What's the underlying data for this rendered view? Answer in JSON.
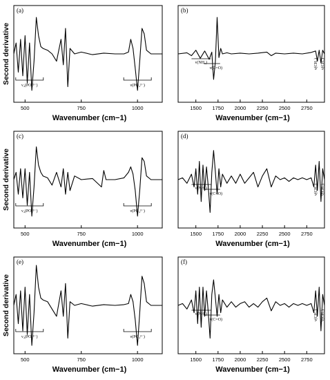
{
  "chart_data": [
    {
      "type": "line",
      "panel_label": "(a)",
      "xlabel": "Wavenumber",
      "xunit": "(cm−1)",
      "ylabel": "Second derivative",
      "xlim": [
        450,
        1110
      ],
      "xticks": [
        500,
        750,
        1000
      ],
      "x": [
        450,
        460,
        470,
        480,
        490,
        500,
        510,
        520,
        530,
        540,
        550,
        560,
        570,
        580,
        600,
        620,
        640,
        660,
        670,
        680,
        690,
        700,
        720,
        750,
        800,
        850,
        900,
        940,
        960,
        970,
        980,
        990,
        1000,
        1010,
        1020,
        1030,
        1040,
        1060,
        1080,
        1110
      ],
      "values": [
        0,
        0.3,
        -0.5,
        0.4,
        -0.6,
        0.5,
        -0.8,
        0.3,
        -1,
        -0.2,
        1,
        0.5,
        0.2,
        0.15,
        0.1,
        0,
        -0.2,
        0.4,
        -0.3,
        0.7,
        -0.9,
        0.15,
        0,
        0.05,
        -0.02,
        0.02,
        0,
        0,
        0.05,
        0.4,
        0.15,
        -0.4,
        -1,
        -0.2,
        0.7,
        0.55,
        0.1,
        0,
        0,
        0
      ],
      "ylim": [
        -1.3,
        1.3
      ],
      "annotations": [
        {
          "text": "ν₄(PO₄³⁻)",
          "x": 520
        },
        {
          "text": "ν(PO₄³⁻)",
          "x": 1000
        }
      ]
    },
    {
      "type": "line",
      "panel_label": "(b)",
      "xlabel": "Wavenumber",
      "xunit": "(cm−1)",
      "ylabel": "",
      "xlim": [
        1300,
        2950
      ],
      "xticks": [
        1500,
        1750,
        2000,
        2250,
        2500,
        2750
      ],
      "x": [
        1300,
        1400,
        1450,
        1500,
        1550,
        1600,
        1650,
        1680,
        1700,
        1720,
        1740,
        1760,
        1780,
        1800,
        1850,
        1900,
        2000,
        2100,
        2200,
        2300,
        2350,
        2400,
        2500,
        2600,
        2700,
        2800,
        2850,
        2870,
        2890,
        2910,
        2930,
        2950
      ],
      "values": [
        0,
        0.03,
        -0.05,
        0.1,
        -0.12,
        0.08,
        -0.15,
        0.05,
        -0.7,
        -0.2,
        1,
        -0.1,
        0.15,
        0,
        0.03,
        0,
        0.02,
        0,
        0.02,
        0.05,
        -0.05,
        0.02,
        0,
        0.02,
        0,
        0.04,
        0.08,
        -0.2,
        0.1,
        -0.25,
        0.1,
        0
      ],
      "ylim": [
        -1.3,
        1.3
      ],
      "annotations": [
        {
          "text": "ν(NH₂)",
          "x": 1560
        },
        {
          "text": "ν(C=O)",
          "x": 1680
        },
        {
          "text": "ν(CH₂)",
          "x": 2850
        },
        {
          "text": "ν(CH₃)",
          "x": 2925
        }
      ]
    },
    {
      "type": "line",
      "panel_label": "(c)",
      "xlabel": "Wavenumber",
      "xunit": "(cm−1)",
      "ylabel": "Second derivative",
      "xlim": [
        450,
        1110
      ],
      "xticks": [
        500,
        750,
        1000
      ],
      "x": [
        450,
        460,
        470,
        480,
        490,
        500,
        510,
        520,
        530,
        540,
        550,
        560,
        570,
        580,
        600,
        620,
        640,
        660,
        670,
        680,
        690,
        700,
        720,
        750,
        800,
        840,
        850,
        860,
        900,
        940,
        960,
        970,
        980,
        990,
        1000,
        1010,
        1020,
        1030,
        1040,
        1060,
        1080,
        1110
      ],
      "values": [
        0,
        0.2,
        -0.4,
        0.3,
        -0.5,
        0.3,
        -0.7,
        0.2,
        -1,
        -0.2,
        0.9,
        0.4,
        0.2,
        0.1,
        0.05,
        -0.15,
        0.2,
        -0.2,
        0.3,
        -0.4,
        0.2,
        -0.3,
        0.1,
        0,
        0.03,
        -0.2,
        0.25,
        0,
        0,
        0.05,
        0.2,
        0.35,
        0.15,
        -0.3,
        -1,
        -0.3,
        0.6,
        0.5,
        0.1,
        0,
        0,
        0
      ],
      "ylim": [
        -1.3,
        1.3
      ],
      "annotations": [
        {
          "text": "ν₄(PO₄³⁻)",
          "x": 520
        },
        {
          "text": "ν(PO₄³⁻)",
          "x": 1000
        }
      ]
    },
    {
      "type": "line",
      "panel_label": "(d)",
      "xlabel": "Wavenumber",
      "xunit": "(cm−1)",
      "ylabel": "",
      "xlim": [
        1300,
        2950
      ],
      "xticks": [
        1500,
        1750,
        2000,
        2250,
        2500,
        2750
      ],
      "x": [
        1300,
        1350,
        1400,
        1450,
        1480,
        1500,
        1520,
        1540,
        1560,
        1580,
        1600,
        1620,
        1640,
        1660,
        1680,
        1700,
        1720,
        1740,
        1760,
        1780,
        1800,
        1850,
        1900,
        1950,
        2000,
        2050,
        2100,
        2150,
        2200,
        2250,
        2300,
        2350,
        2400,
        2450,
        2500,
        2550,
        2600,
        2650,
        2700,
        2750,
        2800,
        2830,
        2850,
        2870,
        2890,
        2910,
        2930,
        2950
      ],
      "values": [
        0,
        0.05,
        -0.1,
        0.15,
        -0.2,
        0.3,
        -0.4,
        0.5,
        -0.6,
        0.4,
        -0.3,
        0.35,
        -0.2,
        -0.9,
        0.2,
        0.8,
        0.2,
        -0.4,
        0.3,
        -0.2,
        0.15,
        -0.1,
        0.1,
        -0.1,
        0.15,
        -0.1,
        0.05,
        0.2,
        -0.2,
        0.1,
        0.3,
        -0.2,
        0.1,
        0,
        0.05,
        -0.05,
        0.05,
        0,
        0.05,
        0,
        0.05,
        -0.2,
        0.4,
        -0.3,
        0.5,
        -0.6,
        0.3,
        0
      ],
      "ylim": [
        -1.3,
        1.3
      ],
      "annotations": [
        {
          "text": "ν(NH₂)",
          "x": 1560
        },
        {
          "text": "ν(C=O)",
          "x": 1680
        },
        {
          "text": "ν(CH₂)",
          "x": 2850
        },
        {
          "text": "ν(CH₃)",
          "x": 2925
        }
      ]
    },
    {
      "type": "line",
      "panel_label": "(e)",
      "xlabel": "Wavenumber",
      "xunit": "(cm−1)",
      "ylabel": "Second derivative",
      "xlim": [
        450,
        1110
      ],
      "xticks": [
        500,
        750,
        1000
      ],
      "x": [
        450,
        460,
        470,
        480,
        490,
        500,
        510,
        520,
        530,
        540,
        550,
        560,
        570,
        580,
        600,
        620,
        640,
        660,
        670,
        680,
        690,
        700,
        720,
        750,
        800,
        850,
        900,
        940,
        960,
        970,
        980,
        990,
        1000,
        1010,
        1020,
        1030,
        1040,
        1060,
        1080,
        1110
      ],
      "values": [
        0,
        0.3,
        -0.5,
        0.4,
        -0.7,
        0.5,
        -0.8,
        0.3,
        -1.1,
        -0.2,
        1.1,
        0.5,
        0.2,
        0.15,
        0.1,
        -0.1,
        -0.3,
        0.4,
        -0.3,
        0.6,
        -0.9,
        0.1,
        0,
        0.05,
        -0.02,
        0.02,
        0,
        0.02,
        0.05,
        0.3,
        0.1,
        -0.4,
        -1.1,
        -0.2,
        0.8,
        0.6,
        0.1,
        0,
        0,
        0
      ],
      "ylim": [
        -1.3,
        1.3
      ],
      "annotations": [
        {
          "text": "ν₄(PO₄³⁻)",
          "x": 520
        },
        {
          "text": "ν(PO₄³⁻)",
          "x": 1000
        }
      ]
    },
    {
      "type": "line",
      "panel_label": "(f)",
      "xlabel": "Wavenumber",
      "xunit": "(cm−1)",
      "ylabel": "",
      "xlim": [
        1300,
        2950
      ],
      "xticks": [
        1500,
        1750,
        2000,
        2250,
        2500,
        2750
      ],
      "x": [
        1300,
        1350,
        1400,
        1450,
        1480,
        1500,
        1520,
        1540,
        1560,
        1580,
        1600,
        1620,
        1640,
        1660,
        1680,
        1700,
        1720,
        1740,
        1760,
        1780,
        1800,
        1850,
        1900,
        1950,
        2000,
        2050,
        2100,
        2150,
        2200,
        2250,
        2300,
        2350,
        2400,
        2450,
        2500,
        2550,
        2600,
        2650,
        2700,
        2750,
        2800,
        2830,
        2850,
        2870,
        2890,
        2910,
        2930,
        2950
      ],
      "values": [
        0,
        0.05,
        -0.1,
        0.15,
        -0.2,
        0.4,
        -0.5,
        0.5,
        -0.6,
        0.5,
        -0.3,
        0.4,
        -0.2,
        -0.9,
        0.3,
        0.7,
        0.2,
        -0.3,
        0.3,
        -0.2,
        0.15,
        -0.05,
        0.1,
        -0.05,
        0.05,
        0.1,
        -0.05,
        0.05,
        -0.05,
        0.1,
        0.2,
        -0.15,
        0.1,
        0,
        0.05,
        -0.05,
        0.05,
        0,
        0.05,
        0,
        0.05,
        -0.2,
        0.4,
        -0.3,
        0.5,
        -0.7,
        0.3,
        0
      ],
      "ylim": [
        -1.3,
        1.3
      ],
      "annotations": [
        {
          "text": "ν(NH₂)",
          "x": 1560
        },
        {
          "text": "ν(C=O)",
          "x": 1680
        },
        {
          "text": "ν(CH₂)",
          "x": 2850
        },
        {
          "text": "ν(CH₃)",
          "x": 2925
        }
      ]
    }
  ]
}
